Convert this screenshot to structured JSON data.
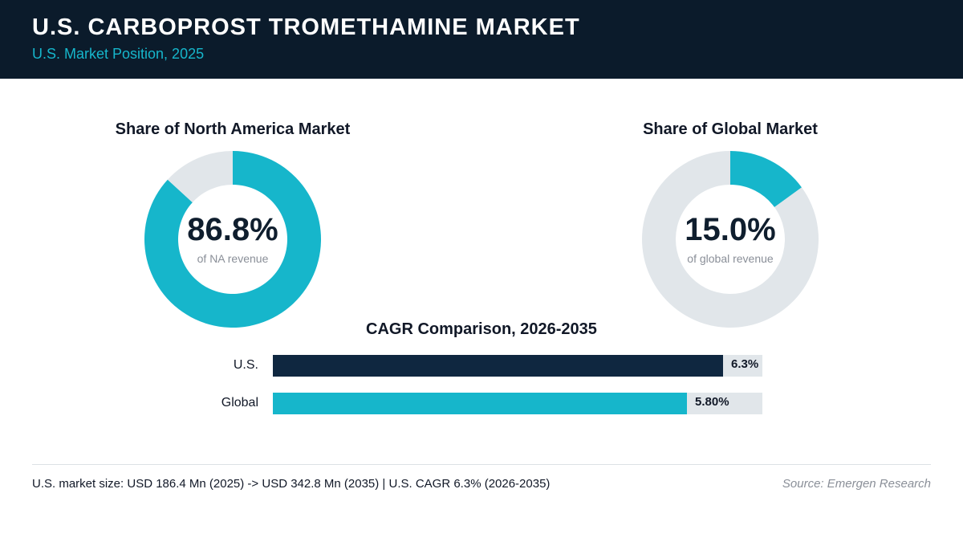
{
  "header": {
    "title": "U.S. CARBOPROST TROMETHAMINE MARKET",
    "subtitle": "U.S. Market Position, 2025"
  },
  "colors": {
    "header_bg": "#0b1b2b",
    "accent": "#16b6cb",
    "navy": "#0f2740",
    "track": "#e1e6ea"
  },
  "chart_data": [
    {
      "type": "pie",
      "title": "Share of North America Market",
      "center_value": "86.8%",
      "center_caption": "of NA revenue",
      "values": [
        86.8,
        13.2
      ],
      "colors": [
        "#16b6cb",
        "#e1e6ea"
      ]
    },
    {
      "type": "pie",
      "title": "Share of Global Market",
      "center_value": "15.0%",
      "center_caption": "of global revenue",
      "values": [
        15.0,
        85.0
      ],
      "colors": [
        "#16b6cb",
        "#e1e6ea"
      ]
    },
    {
      "type": "bar",
      "orientation": "horizontal",
      "title": "CAGR Comparison, 2026-2035",
      "categories": [
        "U.S.",
        "Global"
      ],
      "values": [
        6.3,
        5.8
      ],
      "value_labels": [
        "6.3%",
        "5.80%"
      ],
      "colors": [
        "#0f2740",
        "#16b6cb"
      ]
    }
  ],
  "footer": {
    "summary": "U.S. market size: USD 186.4 Mn (2025) -> USD 342.8 Mn (2035)  |  U.S. CAGR 6.3% (2026-2035)",
    "source": "Source: Emergen Research"
  }
}
